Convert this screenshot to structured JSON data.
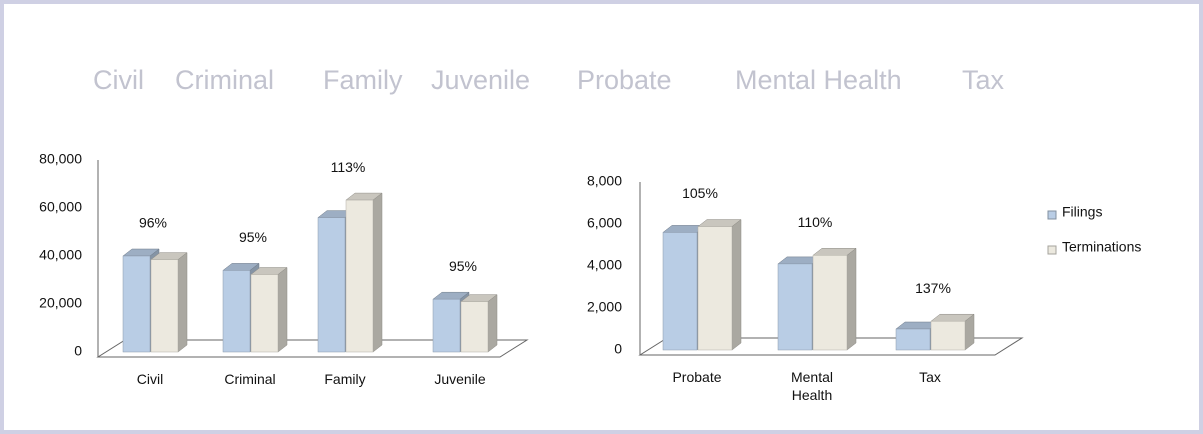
{
  "header_labels": [
    "Civil",
    "Criminal",
    "Family",
    "Juvenile",
    "Probate",
    "Mental Health",
    "Tax"
  ],
  "chart_data": [
    {
      "type": "bar3d",
      "categories": [
        "Civil",
        "Criminal",
        "Family",
        "Juvenile"
      ],
      "series": [
        {
          "name": "Filings",
          "color": "#b9cde5",
          "values": [
            40000,
            34000,
            56000,
            22000
          ]
        },
        {
          "name": "Terminations",
          "color": "#ece9df",
          "values": [
            38500,
            32300,
            63300,
            21000
          ]
        }
      ],
      "ratio_labels": [
        "96%",
        "95%",
        "113%",
        "95%"
      ],
      "ylim": [
        0,
        80000
      ],
      "yticks": [
        0,
        {
          "value": 20000,
          "label": "20,000"
        },
        {
          "value": 40000,
          "label": "40,000"
        },
        {
          "value": 60000,
          "label": "60,000"
        },
        {
          "value": 80000,
          "label": "80,000"
        }
      ]
    },
    {
      "type": "bar3d",
      "categories": [
        "Probate",
        "Mental Health",
        "Tax"
      ],
      "series": [
        {
          "name": "Filings",
          "color": "#b9cde5",
          "values": [
            5600,
            4100,
            1000
          ]
        },
        {
          "name": "Terminations",
          "color": "#ece9df",
          "values": [
            5880,
            4510,
            1370
          ]
        }
      ],
      "ratio_labels": [
        "105%",
        "110%",
        "137%"
      ],
      "ylim": [
        0,
        8000
      ],
      "yticks": [
        0,
        {
          "value": 2000,
          "label": "2,000"
        },
        {
          "value": 4000,
          "label": "4,000"
        },
        {
          "value": 6000,
          "label": "6,000"
        },
        {
          "value": 8000,
          "label": "8,000"
        }
      ],
      "legend": "right"
    }
  ]
}
